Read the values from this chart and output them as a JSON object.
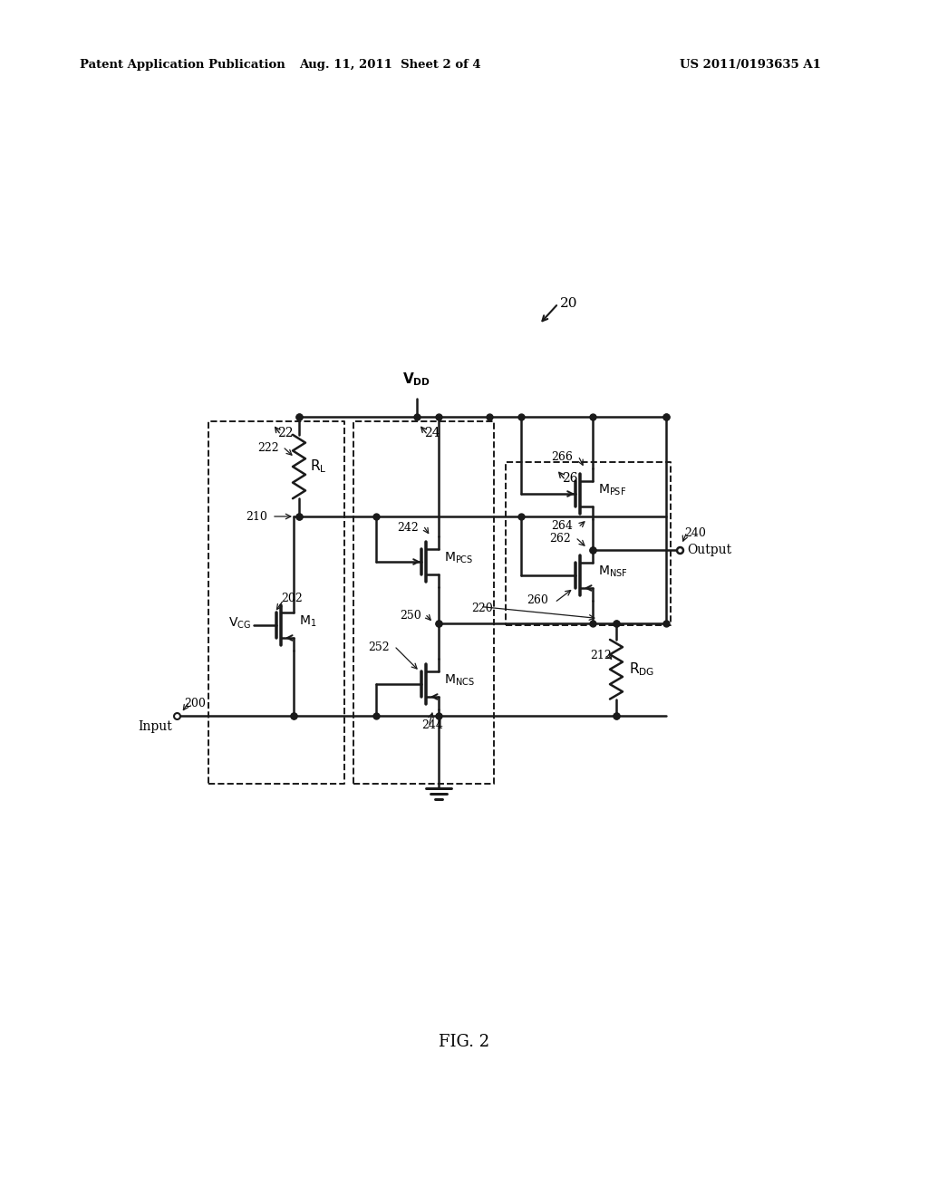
{
  "bg_color": "#ffffff",
  "line_color": "#1a1a1a",
  "header_left": "Patent Application Publication",
  "header_mid": "Aug. 11, 2011  Sheet 2 of 4",
  "header_right": "US 2011/0193635 A1",
  "fig_label": "FIG. 2"
}
